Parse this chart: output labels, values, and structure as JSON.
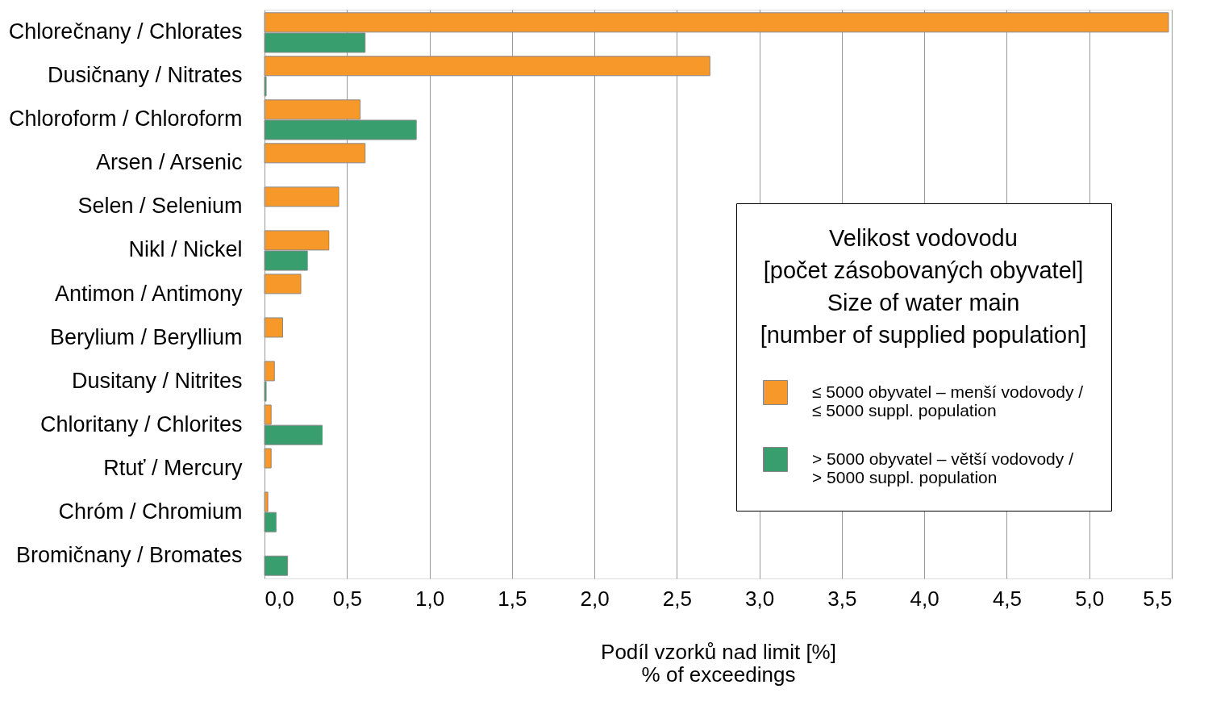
{
  "chart_data": {
    "type": "bar",
    "orientation": "horizontal",
    "categories": [
      "Chlorečnany / Chlorates",
      "Dusičnany / Nitrates",
      "Chloroform / Chloroform",
      "Arsen / Arsenic",
      "Selen / Selenium",
      "Nikl / Nickel",
      "Antimon  / Antimony",
      "Berylium / Beryllium",
      "Dusitany / Nitrites",
      "Chloritany / Chlorites",
      "Rtuť / Mercury",
      "Chróm / Chromium",
      "Bromičnany / Bromates"
    ],
    "series": [
      {
        "name": "≤ 5000 obyvatel – menší vodovody /\n≤ 5000 suppl. population",
        "color": "#f7982a",
        "values": [
          5.48,
          2.7,
          0.58,
          0.61,
          0.45,
          0.39,
          0.22,
          0.11,
          0.06,
          0.04,
          0.04,
          0.02,
          null
        ]
      },
      {
        "name": "> 5000 obyvatel – větší vodovody /\n> 5000 suppl. population",
        "color": "#389e6e",
        "values": [
          0.61,
          0.01,
          0.92,
          null,
          null,
          0.26,
          null,
          null,
          0.01,
          0.35,
          null,
          0.07,
          0.14
        ]
      }
    ],
    "legend_title": "Velikost vodovodu\n[počet zásobovaných obyvatel]\nSize of water main\n[number of supplied population]",
    "xlabel": "Podíl vzorků nad limit [%]\n% of exceedings",
    "xlim": [
      0,
      5.5
    ],
    "xticks": [
      {
        "value": 0,
        "label": "0,0"
      },
      {
        "value": 0.5,
        "label": "0,5"
      },
      {
        "value": 1,
        "label": "1,0"
      },
      {
        "value": 1.5,
        "label": "1,5"
      },
      {
        "value": 2,
        "label": "2,0"
      },
      {
        "value": 2.5,
        "label": "2,5"
      },
      {
        "value": 3,
        "label": "3,0"
      },
      {
        "value": 3.5,
        "label": "3,5"
      },
      {
        "value": 4,
        "label": "4,0"
      },
      {
        "value": 4.5,
        "label": "4,5"
      },
      {
        "value": 5,
        "label": "5,0"
      },
      {
        "value": 5.5,
        "label": "5,5"
      }
    ],
    "grid": "x",
    "legend": "right"
  }
}
